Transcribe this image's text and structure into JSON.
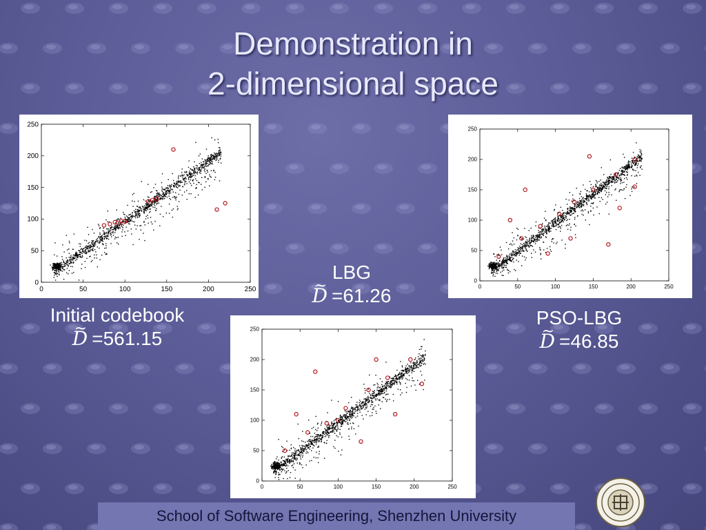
{
  "title": {
    "line1": "Demonstration in",
    "line2": "2-dimensional space"
  },
  "panels": {
    "initial": {
      "label": "Initial codebook",
      "value": "=561.15"
    },
    "lbg": {
      "label": "LBG",
      "value": "=61.26"
    },
    "psolbg": {
      "label": "PSO-LBG",
      "value": "=46.85"
    }
  },
  "footer": {
    "text": "School of Software Engineering, Shenzhen University"
  },
  "colors": {
    "codeword": "#b0141a",
    "points": "#000000"
  },
  "chart_data": [
    {
      "type": "scatter",
      "id": "initial",
      "x_ticks": [
        0,
        50,
        100,
        150,
        200,
        250
      ],
      "y_ticks": [
        0,
        50,
        100,
        150,
        200,
        250
      ],
      "xlim": [
        0,
        250
      ],
      "ylim": [
        0,
        250
      ],
      "grid": false,
      "codewords": [
        [
          75,
          90
        ],
        [
          82,
          92
        ],
        [
          88,
          95
        ],
        [
          92,
          94
        ],
        [
          96,
          97
        ],
        [
          100,
          96
        ],
        [
          128,
          128
        ],
        [
          133,
          130
        ],
        [
          138,
          132
        ],
        [
          158,
          210
        ],
        [
          210,
          115
        ],
        [
          220,
          125
        ]
      ]
    },
    {
      "type": "scatter",
      "id": "lbg",
      "x_ticks": [
        0,
        50,
        100,
        150,
        200,
        250
      ],
      "y_ticks": [
        0,
        50,
        100,
        150,
        200,
        250
      ],
      "xlim": [
        0,
        250
      ],
      "ylim": [
        0,
        250
      ],
      "grid": false,
      "codewords": [
        [
          30,
          50
        ],
        [
          60,
          80
        ],
        [
          85,
          95
        ],
        [
          100,
          100
        ],
        [
          110,
          120
        ],
        [
          140,
          150
        ],
        [
          165,
          170
        ],
        [
          195,
          200
        ],
        [
          70,
          180
        ],
        [
          130,
          65
        ],
        [
          175,
          110
        ],
        [
          210,
          160
        ],
        [
          45,
          110
        ],
        [
          150,
          200
        ]
      ]
    },
    {
      "type": "scatter",
      "id": "psolbg",
      "x_ticks": [
        0,
        50,
        100,
        150,
        200,
        250
      ],
      "y_ticks": [
        0,
        50,
        100,
        150,
        200,
        250
      ],
      "xlim": [
        0,
        250
      ],
      "ylim": [
        0,
        250
      ],
      "grid": false,
      "codewords": [
        [
          25,
          40
        ],
        [
          55,
          70
        ],
        [
          80,
          90
        ],
        [
          105,
          110
        ],
        [
          125,
          130
        ],
        [
          150,
          150
        ],
        [
          180,
          175
        ],
        [
          205,
          200
        ],
        [
          60,
          150
        ],
        [
          120,
          70
        ],
        [
          185,
          120
        ],
        [
          205,
          155
        ],
        [
          40,
          100
        ],
        [
          145,
          205
        ],
        [
          90,
          45
        ],
        [
          170,
          60
        ]
      ]
    }
  ]
}
